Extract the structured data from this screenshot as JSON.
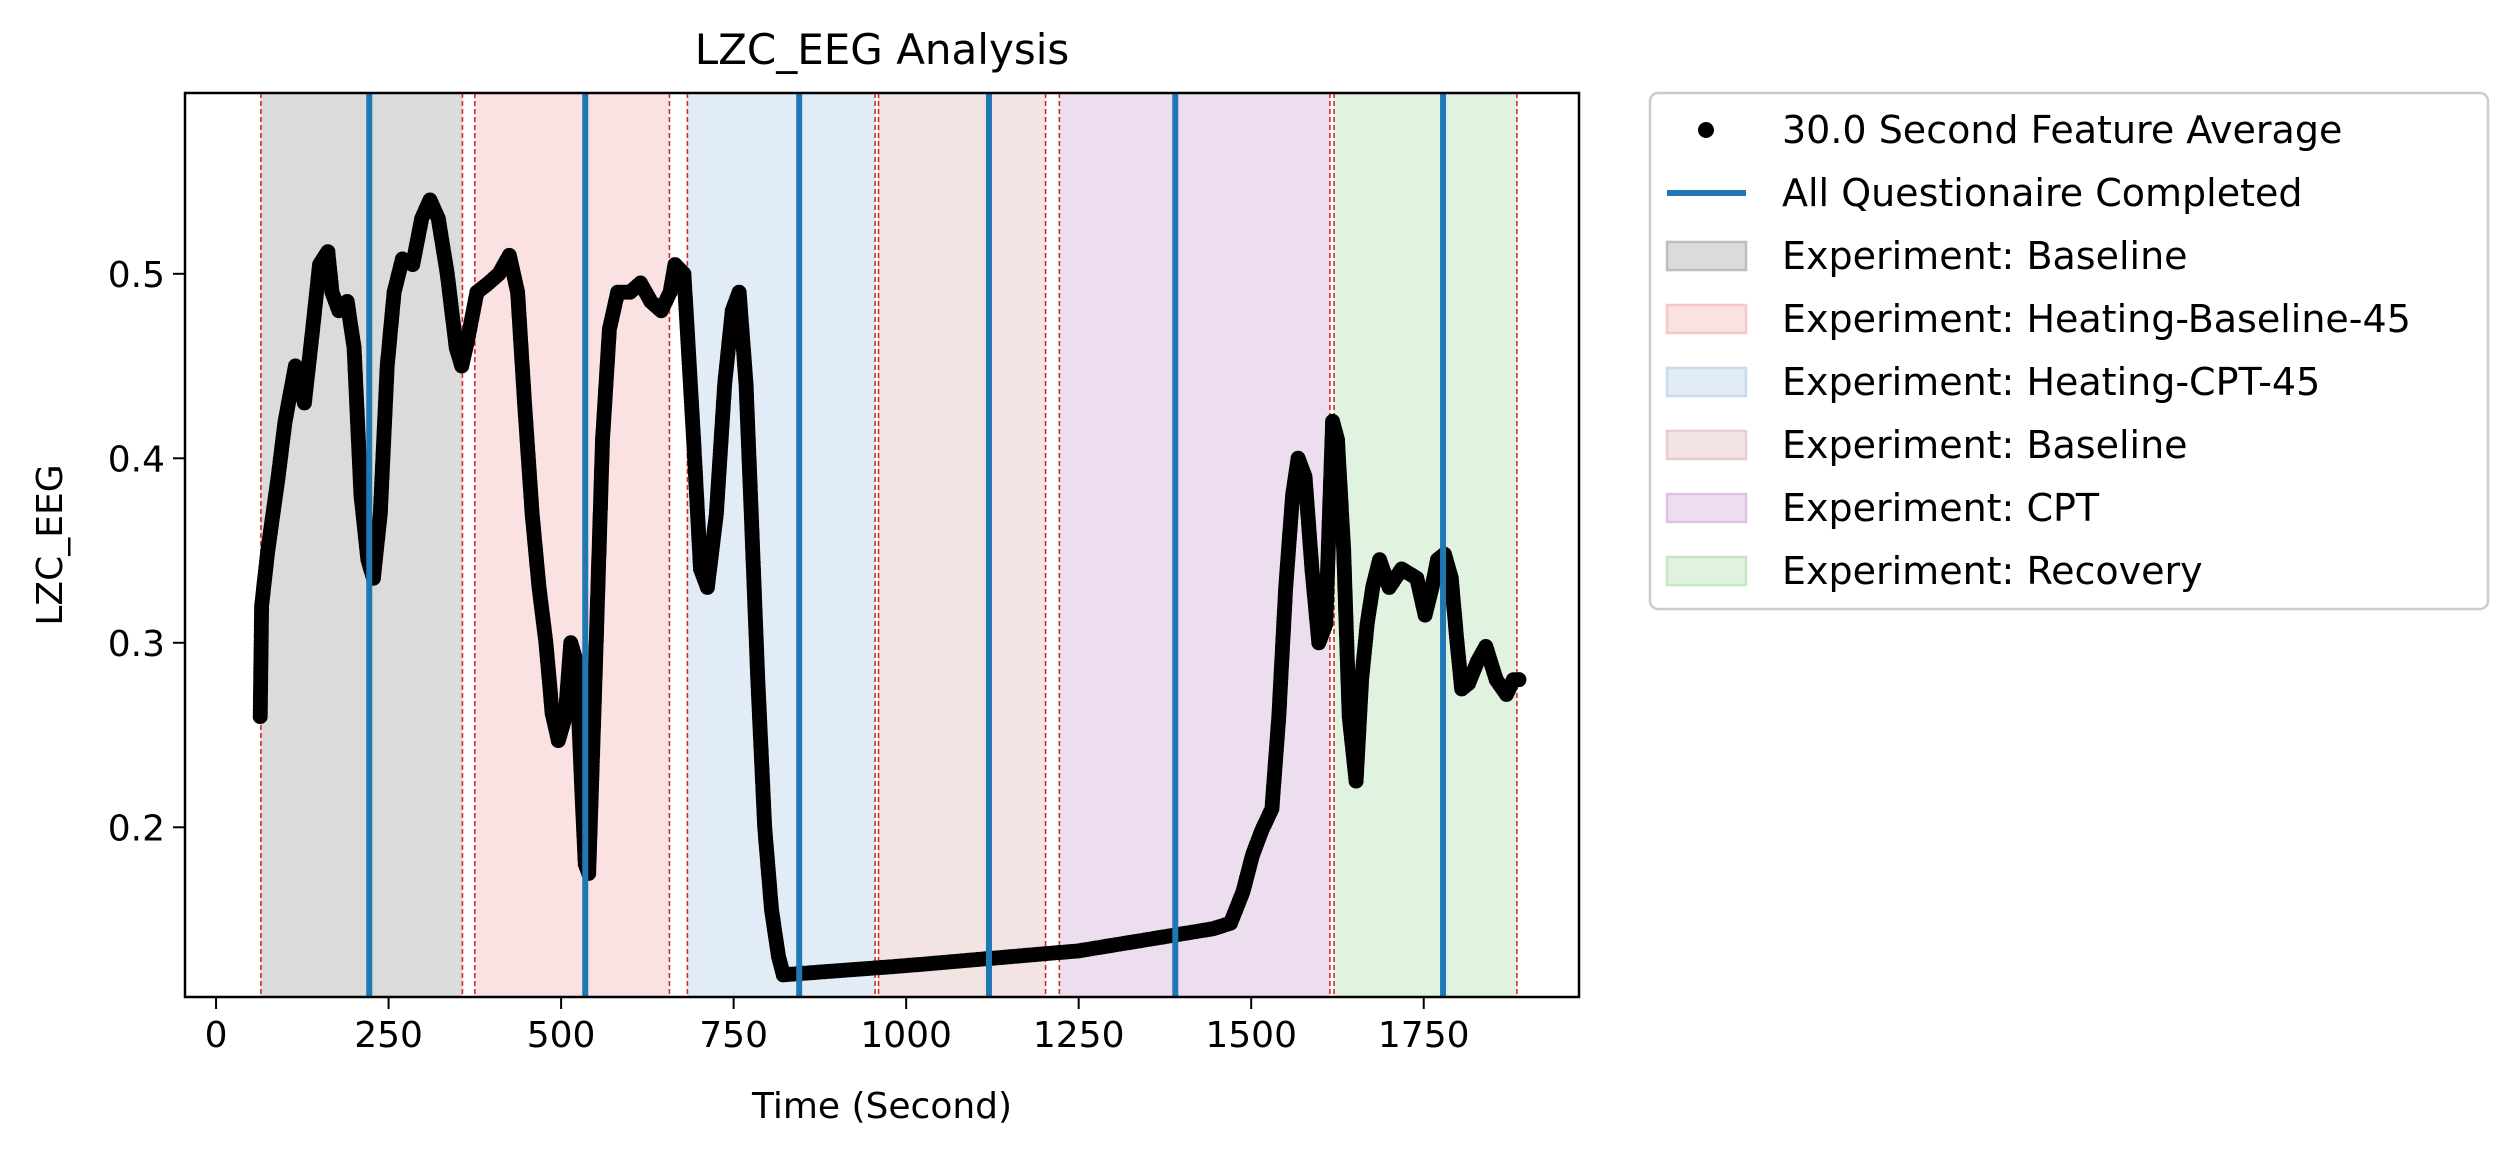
{
  "chart_data": {
    "type": "scatter",
    "title": "LZC_EEG Analysis",
    "xlabel": "Time (Second)",
    "ylabel": "LZC_EEG",
    "xlim": [
      -45,
      1975
    ],
    "ylim": [
      0.108,
      0.598
    ],
    "xticks": [
      {
        "value": 0,
        "label": "0"
      },
      {
        "value": 250,
        "label": "250"
      },
      {
        "value": 500,
        "label": "500"
      },
      {
        "value": 750,
        "label": "750"
      },
      {
        "value": 1000,
        "label": "1000"
      },
      {
        "value": 1250,
        "label": "1250"
      },
      {
        "value": 1500,
        "label": "1500"
      },
      {
        "value": 1750,
        "label": "1750"
      }
    ],
    "yticks": [
      {
        "value": 0.2,
        "label": "0.2"
      },
      {
        "value": 0.3,
        "label": "0.3"
      },
      {
        "value": 0.4,
        "label": "0.4"
      },
      {
        "value": 0.5,
        "label": "0.5"
      }
    ],
    "grid": false,
    "legend_position": "outside-right-top",
    "point_color": "#000000",
    "questionnaire_color": "#1f77b4",
    "boundary_color": "#d62728",
    "scatter_series": {
      "name": "30.0 Second Feature Average",
      "keypoints": [
        [
          64,
          0.26
        ],
        [
          66,
          0.32
        ],
        [
          75,
          0.35
        ],
        [
          90,
          0.39
        ],
        [
          100,
          0.42
        ],
        [
          115,
          0.45
        ],
        [
          128,
          0.43
        ],
        [
          140,
          0.47
        ],
        [
          150,
          0.505
        ],
        [
          162,
          0.512
        ],
        [
          168,
          0.49
        ],
        [
          178,
          0.48
        ],
        [
          190,
          0.485
        ],
        [
          200,
          0.46
        ],
        [
          210,
          0.38
        ],
        [
          220,
          0.345
        ],
        [
          228,
          0.335
        ],
        [
          238,
          0.37
        ],
        [
          248,
          0.45
        ],
        [
          258,
          0.49
        ],
        [
          270,
          0.508
        ],
        [
          285,
          0.505
        ],
        [
          298,
          0.53
        ],
        [
          310,
          0.54
        ],
        [
          322,
          0.53
        ],
        [
          335,
          0.5
        ],
        [
          348,
          0.46
        ],
        [
          356,
          0.45
        ],
        [
          365,
          0.465
        ],
        [
          378,
          0.49
        ],
        [
          395,
          0.495
        ],
        [
          410,
          0.5
        ],
        [
          425,
          0.51
        ],
        [
          437,
          0.49
        ],
        [
          447,
          0.43
        ],
        [
          458,
          0.37
        ],
        [
          468,
          0.33
        ],
        [
          478,
          0.3
        ],
        [
          487,
          0.262
        ],
        [
          496,
          0.247
        ],
        [
          506,
          0.26
        ],
        [
          514,
          0.3
        ],
        [
          522,
          0.29
        ],
        [
          530,
          0.22
        ],
        [
          535,
          0.18
        ],
        [
          540,
          0.175
        ],
        [
          550,
          0.29
        ],
        [
          560,
          0.41
        ],
        [
          570,
          0.47
        ],
        [
          582,
          0.49
        ],
        [
          600,
          0.49
        ],
        [
          615,
          0.495
        ],
        [
          630,
          0.485
        ],
        [
          645,
          0.48
        ],
        [
          658,
          0.49
        ],
        [
          665,
          0.505
        ],
        [
          678,
          0.5
        ],
        [
          692,
          0.41
        ],
        [
          702,
          0.34
        ],
        [
          712,
          0.33
        ],
        [
          725,
          0.37
        ],
        [
          737,
          0.44
        ],
        [
          748,
          0.48
        ],
        [
          758,
          0.49
        ],
        [
          768,
          0.44
        ],
        [
          775,
          0.375
        ],
        [
          785,
          0.28
        ],
        [
          795,
          0.2
        ],
        [
          805,
          0.155
        ],
        [
          815,
          0.13
        ],
        [
          822,
          0.12
        ],
        [
          1000,
          0.125
        ],
        [
          1250,
          0.133
        ],
        [
          1445,
          0.145
        ],
        [
          1470,
          0.148
        ],
        [
          1488,
          0.165
        ],
        [
          1502,
          0.185
        ],
        [
          1515,
          0.198
        ],
        [
          1530,
          0.21
        ],
        [
          1540,
          0.26
        ],
        [
          1550,
          0.33
        ],
        [
          1560,
          0.38
        ],
        [
          1568,
          0.4
        ],
        [
          1578,
          0.39
        ],
        [
          1588,
          0.34
        ],
        [
          1598,
          0.3
        ],
        [
          1608,
          0.31
        ],
        [
          1618,
          0.42
        ],
        [
          1625,
          0.41
        ],
        [
          1634,
          0.35
        ],
        [
          1642,
          0.26
        ],
        [
          1652,
          0.225
        ],
        [
          1660,
          0.28
        ],
        [
          1668,
          0.31
        ],
        [
          1676,
          0.33
        ],
        [
          1686,
          0.345
        ],
        [
          1700,
          0.33
        ],
        [
          1718,
          0.34
        ],
        [
          1740,
          0.335
        ],
        [
          1752,
          0.315
        ],
        [
          1762,
          0.33
        ],
        [
          1770,
          0.345
        ],
        [
          1780,
          0.348
        ],
        [
          1790,
          0.335
        ],
        [
          1797,
          0.305
        ],
        [
          1805,
          0.275
        ],
        [
          1815,
          0.278
        ],
        [
          1828,
          0.29
        ],
        [
          1840,
          0.298
        ],
        [
          1855,
          0.28
        ],
        [
          1870,
          0.272
        ],
        [
          1880,
          0.28
        ],
        [
          1888,
          0.28
        ]
      ]
    },
    "questionnaire_lines": {
      "name": "All Questionaire Completed",
      "x": [
        222,
        535,
        845,
        1120,
        1390,
        1778
      ]
    },
    "phases": [
      {
        "name": "Experiment: Baseline",
        "start": 65,
        "end": 357,
        "color": "#bdbdbd"
      },
      {
        "name": "Experiment: Heating-Baseline-45",
        "start": 375,
        "end": 657,
        "color": "#f6c8cb"
      },
      {
        "name": "Experiment: Heating-CPT-45",
        "start": 683,
        "end": 955,
        "color": "#c8dcee"
      },
      {
        "name": "Experiment: Baseline",
        "start": 960,
        "end": 1202,
        "color": "#e9cccc"
      },
      {
        "name": "Experiment: CPT",
        "start": 1222,
        "end": 1614,
        "color": "#dfc2e1"
      },
      {
        "name": "Experiment: Recovery",
        "start": 1620,
        "end": 1885,
        "color": "#c6e7c6"
      }
    ],
    "phase_boundaries": [
      65,
      357,
      375,
      657,
      683,
      955,
      960,
      1202,
      1222,
      1614,
      1620,
      1885
    ]
  }
}
